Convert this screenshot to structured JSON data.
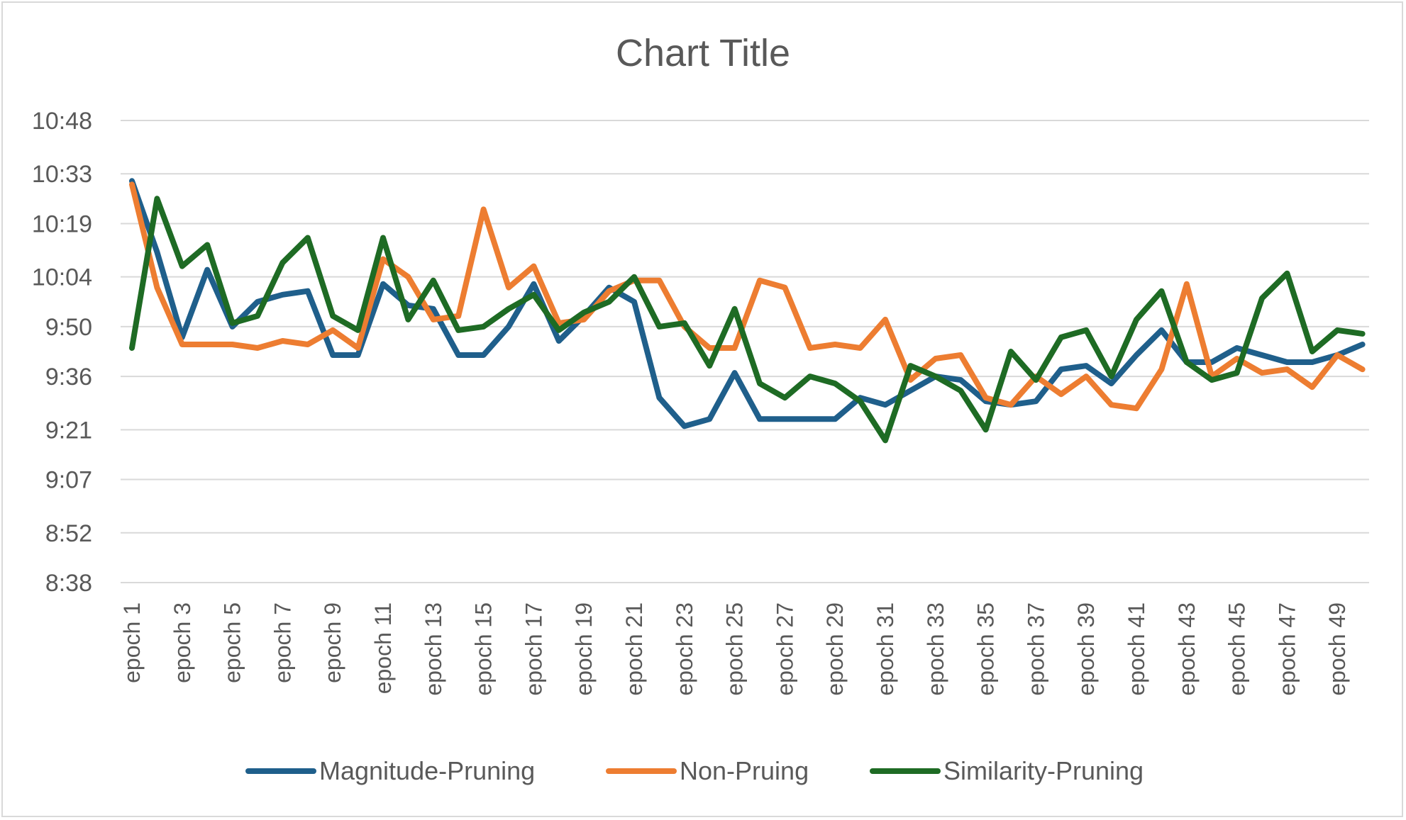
{
  "chart_data": {
    "type": "line",
    "title": "Chart Title",
    "xlabel": "",
    "ylabel": "",
    "y_unit": "time h:mm",
    "ylim": [
      "8:38",
      "10:48"
    ],
    "yticks": [
      "8:38",
      "8:52",
      "9:07",
      "9:21",
      "9:36",
      "9:50",
      "10:04",
      "10:19",
      "10:33",
      "10:48"
    ],
    "x": [
      "epoch 1",
      "epoch 2",
      "epoch 3",
      "epoch 4",
      "epoch 5",
      "epoch 6",
      "epoch 7",
      "epoch 8",
      "epoch 9",
      "epoch 10",
      "epoch 11",
      "epoch 12",
      "epoch 13",
      "epoch 14",
      "epoch 15",
      "epoch 16",
      "epoch 17",
      "epoch 18",
      "epoch 19",
      "epoch 20",
      "epoch 21",
      "epoch 22",
      "epoch 23",
      "epoch 24",
      "epoch 25",
      "epoch 26",
      "epoch 27",
      "epoch 28",
      "epoch 29",
      "epoch 30",
      "epoch 31",
      "epoch 32",
      "epoch 33",
      "epoch 34",
      "epoch 35",
      "epoch 36",
      "epoch 37",
      "epoch 38",
      "epoch 39",
      "epoch 40",
      "epoch 41",
      "epoch 42",
      "epoch 43",
      "epoch 44",
      "epoch 45",
      "epoch 46",
      "epoch 47",
      "epoch 48",
      "epoch 49",
      "epoch 50"
    ],
    "xticks_shown": [
      "epoch 1",
      "epoch 3",
      "epoch 5",
      "epoch 7",
      "epoch 9",
      "epoch 11",
      "epoch 13",
      "epoch 15",
      "epoch 17",
      "epoch 19",
      "epoch 21",
      "epoch 23",
      "epoch 25",
      "epoch 27",
      "epoch 29",
      "epoch 31",
      "epoch 33",
      "epoch 35",
      "epoch 37",
      "epoch 39",
      "epoch 41",
      "epoch 43",
      "epoch 45",
      "epoch 47",
      "epoch 49"
    ],
    "grid": true,
    "legend_position": "bottom",
    "series": [
      {
        "name": "Magnitude-Pruning",
        "color": "#1f5f8b",
        "values": [
          "10:31",
          "10:11",
          "9:47",
          "10:06",
          "9:50",
          "9:57",
          "9:59",
          "10:00",
          "9:42",
          "9:42",
          "10:02",
          "9:56",
          "9:55",
          "9:42",
          "9:42",
          "9:50",
          "10:02",
          "9:46",
          "9:53",
          "10:01",
          "9:57",
          "9:30",
          "9:22",
          "9:24",
          "9:37",
          "9:24",
          "9:24",
          "9:24",
          "9:24",
          "9:30",
          "9:28",
          "9:32",
          "9:36",
          "9:35",
          "9:29",
          "9:28",
          "9:29",
          "9:38",
          "9:39",
          "9:34",
          "9:42",
          "9:49",
          "9:40",
          "9:40",
          "9:44",
          "9:42",
          "9:40",
          "9:40",
          "9:42",
          "9:45"
        ]
      },
      {
        "name": "Non-Pruing",
        "color": "#ed7d31",
        "values": [
          "10:30",
          "10:01",
          "9:45",
          "9:45",
          "9:45",
          "9:44",
          "9:46",
          "9:45",
          "9:49",
          "9:44",
          "10:09",
          "10:04",
          "9:52",
          "9:53",
          "10:23",
          "10:01",
          "10:07",
          "9:51",
          "9:52",
          "10:00",
          "10:03",
          "10:03",
          "9:50",
          "9:44",
          "9:44",
          "10:03",
          "10:01",
          "9:44",
          "9:45",
          "9:44",
          "9:52",
          "9:35",
          "9:41",
          "9:42",
          "9:30",
          "9:28",
          "9:36",
          "9:31",
          "9:36",
          "9:28",
          "9:27",
          "9:38",
          "10:02",
          "9:36",
          "9:41",
          "9:37",
          "9:38",
          "9:33",
          "9:42",
          "9:38"
        ]
      },
      {
        "name": "Similarity-Pruning",
        "color": "#1e6b24",
        "values": [
          "9:44",
          "10:26",
          "10:07",
          "10:13",
          "9:51",
          "9:53",
          "10:08",
          "10:15",
          "9:53",
          "9:49",
          "10:15",
          "9:52",
          "10:03",
          "9:49",
          "9:50",
          "9:55",
          "9:59",
          "9:49",
          "9:54",
          "9:57",
          "10:04",
          "9:50",
          "9:51",
          "9:39",
          "9:55",
          "9:34",
          "9:30",
          "9:36",
          "9:34",
          "9:29",
          "9:18",
          "9:39",
          "9:36",
          "9:32",
          "9:21",
          "9:43",
          "9:35",
          "9:47",
          "9:49",
          "9:36",
          "9:52",
          "10:00",
          "9:40",
          "9:35",
          "9:37",
          "9:58",
          "10:05",
          "9:43",
          "9:49",
          "9:48"
        ]
      }
    ]
  }
}
